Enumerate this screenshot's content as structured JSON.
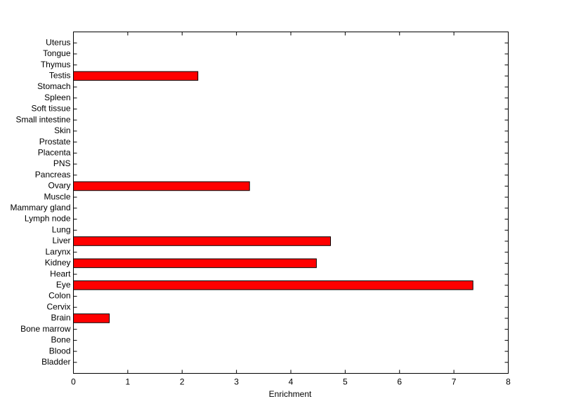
{
  "chart_data": {
    "type": "barh",
    "xlabel": "Enrichment",
    "categories": [
      "Bladder",
      "Blood",
      "Bone",
      "Bone marrow",
      "Brain",
      "Cervix",
      "Colon",
      "Eye",
      "Heart",
      "Kidney",
      "Larynx",
      "Liver",
      "Lung",
      "Lymph node",
      "Mammary gland",
      "Muscle",
      "Ovary",
      "Pancreas",
      "PNS",
      "Placenta",
      "Prostate",
      "Skin",
      "Small intestine",
      "Soft tissue",
      "Spleen",
      "Stomach",
      "Testis",
      "Thymus",
      "Tongue",
      "Uterus"
    ],
    "values": [
      0,
      0,
      0,
      0,
      0.66,
      0,
      0,
      7.35,
      0,
      4.47,
      0,
      4.73,
      0,
      0,
      0,
      0,
      3.24,
      0,
      0,
      0,
      0,
      0,
      0,
      0,
      0,
      0,
      2.29,
      0,
      0,
      0
    ],
    "color": "#ff0000",
    "xlim": [
      0,
      8
    ],
    "xticks": [
      0,
      1,
      2,
      3,
      4,
      5,
      6,
      7,
      8
    ]
  }
}
